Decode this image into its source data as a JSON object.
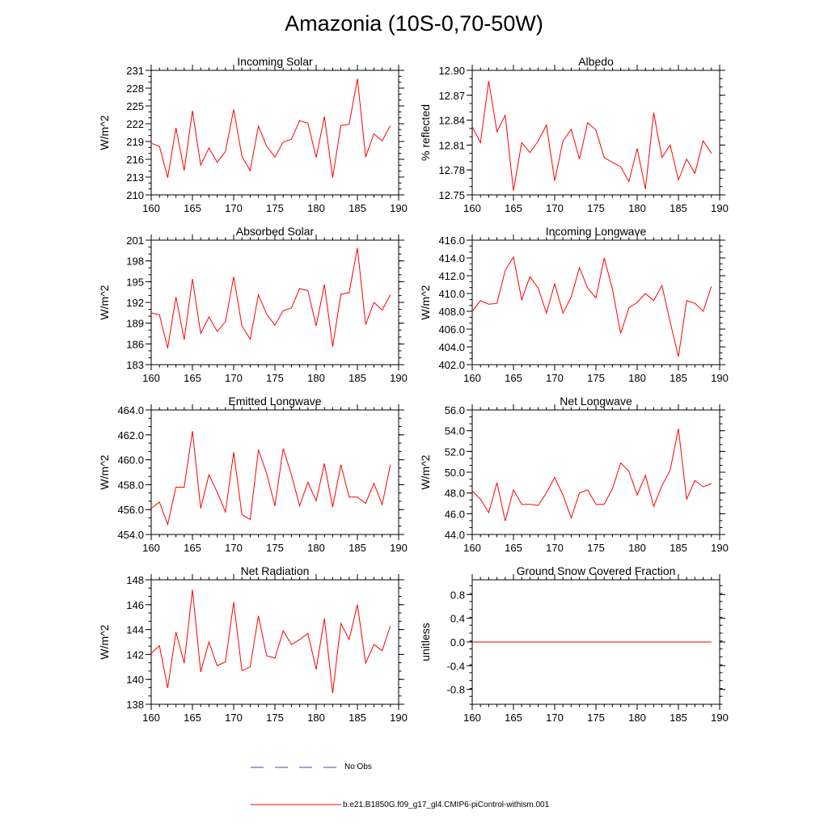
{
  "title": "Amazonia (10S-0,70-50W)",
  "legend": {
    "no_obs_label": "No Obs",
    "no_obs_color": "#3b4ba8",
    "model_label": "b.e21.B1850G.f09_g17_gl4.CMIP6-piControl-withism.001",
    "model_color": "#ff0000"
  },
  "chart_data": [
    {
      "type": "line",
      "title": "Incoming Solar",
      "ylabel": "W/m^2",
      "xlim": [
        160,
        190
      ],
      "ylim": [
        210,
        231
      ],
      "xticks": [
        160,
        165,
        170,
        175,
        180,
        185,
        190
      ],
      "yticks": [
        "210",
        "213",
        "216",
        "219",
        "222",
        "225",
        "228",
        "231"
      ],
      "x": [
        160,
        161,
        162,
        163,
        164,
        165,
        166,
        167,
        168,
        169,
        170,
        171,
        172,
        173,
        174,
        175,
        176,
        177,
        178,
        179,
        180,
        181,
        182,
        183,
        184,
        185,
        186,
        187,
        188,
        189
      ],
      "series": [
        {
          "values": [
            218.7,
            218.2,
            212.9,
            221.3,
            214.1,
            224.2,
            215.0,
            217.9,
            215.5,
            217.3,
            224.4,
            216.5,
            214.1,
            221.6,
            218.2,
            216.4,
            218.9,
            219.4,
            222.5,
            222.1,
            216.3,
            223.2,
            212.9,
            221.7,
            221.9,
            229.6,
            216.4,
            220.3,
            219.1,
            221.7
          ]
        }
      ]
    },
    {
      "type": "line",
      "title": "Albedo",
      "ylabel": "% reflected",
      "xlim": [
        160,
        190
      ],
      "ylim": [
        12.75,
        12.9
      ],
      "xticks": [
        160,
        165,
        170,
        175,
        180,
        185,
        190
      ],
      "yticks": [
        "12.75",
        "12.78",
        "12.81",
        "12.84",
        "12.87",
        "12.90"
      ],
      "x": [
        160,
        161,
        162,
        163,
        164,
        165,
        166,
        167,
        168,
        169,
        170,
        171,
        172,
        173,
        174,
        175,
        176,
        177,
        178,
        179,
        180,
        181,
        182,
        183,
        184,
        185,
        186,
        187,
        188,
        189
      ],
      "series": [
        {
          "values": [
            12.832,
            12.813,
            12.887,
            12.826,
            12.846,
            12.755,
            12.813,
            12.801,
            12.815,
            12.834,
            12.767,
            12.815,
            12.829,
            12.793,
            12.837,
            12.828,
            12.795,
            12.789,
            12.784,
            12.766,
            12.806,
            12.757,
            12.849,
            12.795,
            12.81,
            12.768,
            12.793,
            12.776,
            12.815,
            12.8
          ]
        }
      ]
    },
    {
      "type": "line",
      "title": "Absorbed Solar",
      "ylabel": "W/m^2",
      "xlim": [
        160,
        190
      ],
      "ylim": [
        183,
        201
      ],
      "xticks": [
        160,
        165,
        170,
        175,
        180,
        185,
        190
      ],
      "yticks": [
        "183",
        "186",
        "189",
        "192",
        "195",
        "198",
        "201"
      ],
      "x": [
        160,
        161,
        162,
        163,
        164,
        165,
        166,
        167,
        168,
        169,
        170,
        171,
        172,
        173,
        174,
        175,
        176,
        177,
        178,
        179,
        180,
        181,
        182,
        183,
        184,
        185,
        186,
        187,
        188,
        189
      ],
      "series": [
        {
          "values": [
            190.5,
            190.2,
            185.4,
            192.8,
            186.6,
            195.4,
            187.5,
            189.9,
            187.8,
            189.2,
            195.7,
            188.6,
            186.7,
            193.1,
            190.3,
            188.7,
            190.8,
            191.2,
            194.0,
            193.7,
            188.6,
            194.6,
            185.6,
            193.2,
            193.4,
            199.9,
            188.8,
            192.0,
            190.9,
            193.1
          ]
        }
      ]
    },
    {
      "type": "line",
      "title": "Incoming Longwave",
      "ylabel": "W/m^2",
      "xlim": [
        160,
        190
      ],
      "ylim": [
        402.0,
        416.0
      ],
      "xticks": [
        160,
        165,
        170,
        175,
        180,
        185,
        190
      ],
      "yticks": [
        "402.0",
        "404.0",
        "406.0",
        "408.0",
        "410.0",
        "412.0",
        "414.0",
        "416.0"
      ],
      "x": [
        160,
        161,
        162,
        163,
        164,
        165,
        166,
        167,
        168,
        169,
        170,
        171,
        172,
        173,
        174,
        175,
        176,
        177,
        178,
        179,
        180,
        181,
        182,
        183,
        184,
        185,
        186,
        187,
        188,
        189
      ],
      "series": [
        {
          "values": [
            408.0,
            409.2,
            408.8,
            408.9,
            412.6,
            414.1,
            409.3,
            411.9,
            410.6,
            407.8,
            411.1,
            407.8,
            409.6,
            412.9,
            410.6,
            409.5,
            414.0,
            410.5,
            405.5,
            408.4,
            409.0,
            410.0,
            409.2,
            410.9,
            406.8,
            402.9,
            409.2,
            408.9,
            408.0,
            410.8
          ]
        }
      ]
    },
    {
      "type": "line",
      "title": "Emitted Longwave",
      "ylabel": "W/m^2",
      "xlim": [
        160,
        190
      ],
      "ylim": [
        454.0,
        464.0
      ],
      "xticks": [
        160,
        165,
        170,
        175,
        180,
        185,
        190
      ],
      "yticks": [
        "454.0",
        "456.0",
        "458.0",
        "460.0",
        "462.0",
        "464.0"
      ],
      "x": [
        160,
        161,
        162,
        163,
        164,
        165,
        166,
        167,
        168,
        169,
        170,
        171,
        172,
        173,
        174,
        175,
        176,
        177,
        178,
        179,
        180,
        181,
        182,
        183,
        184,
        185,
        186,
        187,
        188,
        189
      ],
      "series": [
        {
          "values": [
            456.1,
            456.6,
            454.8,
            457.8,
            457.8,
            462.3,
            456.1,
            458.8,
            457.4,
            455.8,
            460.6,
            455.6,
            455.2,
            460.8,
            458.9,
            456.3,
            460.9,
            458.8,
            456.3,
            458.2,
            456.7,
            459.7,
            456.2,
            459.6,
            457.0,
            457.0,
            456.5,
            458.1,
            456.4,
            459.6
          ]
        }
      ]
    },
    {
      "type": "line",
      "title": "Net Longwave",
      "ylabel": "W/m^2",
      "xlim": [
        160,
        190
      ],
      "ylim": [
        44.0,
        56.0
      ],
      "xticks": [
        160,
        165,
        170,
        175,
        180,
        185,
        190
      ],
      "yticks": [
        "44.0",
        "46.0",
        "48.0",
        "50.0",
        "52.0",
        "54.0",
        "56.0"
      ],
      "x": [
        160,
        161,
        162,
        163,
        164,
        165,
        166,
        167,
        168,
        169,
        170,
        171,
        172,
        173,
        174,
        175,
        176,
        177,
        178,
        179,
        180,
        181,
        182,
        183,
        184,
        185,
        186,
        187,
        188,
        189
      ],
      "series": [
        {
          "values": [
            48.2,
            47.4,
            46.1,
            49.0,
            45.3,
            48.3,
            46.9,
            46.9,
            46.8,
            48.0,
            49.5,
            47.8,
            45.6,
            48.0,
            48.3,
            46.9,
            46.9,
            48.4,
            50.9,
            50.1,
            47.8,
            49.7,
            46.7,
            48.7,
            50.2,
            54.2,
            47.4,
            49.2,
            48.6,
            48.9
          ]
        }
      ]
    },
    {
      "type": "line",
      "title": "Net Radiation",
      "ylabel": "W/m^2",
      "xlim": [
        160,
        190
      ],
      "ylim": [
        138,
        148
      ],
      "xticks": [
        160,
        165,
        170,
        175,
        180,
        185,
        190
      ],
      "yticks": [
        "138",
        "140",
        "142",
        "144",
        "146",
        "148"
      ],
      "x": [
        160,
        161,
        162,
        163,
        164,
        165,
        166,
        167,
        168,
        169,
        170,
        171,
        172,
        173,
        174,
        175,
        176,
        177,
        178,
        179,
        180,
        181,
        182,
        183,
        184,
        185,
        186,
        187,
        188,
        189
      ],
      "series": [
        {
          "values": [
            142.1,
            142.7,
            139.3,
            143.8,
            141.3,
            147.2,
            140.6,
            143.0,
            141.1,
            141.4,
            146.2,
            140.7,
            141.0,
            145.1,
            141.9,
            141.7,
            143.9,
            142.8,
            143.2,
            143.7,
            140.8,
            144.9,
            138.9,
            144.5,
            143.2,
            146.0,
            141.3,
            142.8,
            142.3,
            144.3
          ]
        }
      ]
    },
    {
      "type": "line",
      "title": "Ground Snow Covered Fraction",
      "ylabel": "unitless",
      "xlim": [
        160,
        190
      ],
      "ylim": [
        -1.05,
        1.05
      ],
      "xticks": [
        160,
        165,
        170,
        175,
        180,
        185,
        190
      ],
      "yticks": [
        "-0.8",
        "-0.4",
        "0.0",
        "0.4",
        "0.8"
      ],
      "x": [
        160,
        161,
        162,
        163,
        164,
        165,
        166,
        167,
        168,
        169,
        170,
        171,
        172,
        173,
        174,
        175,
        176,
        177,
        178,
        179,
        180,
        181,
        182,
        183,
        184,
        185,
        186,
        187,
        188,
        189
      ],
      "series": [
        {
          "values": [
            0,
            0,
            0,
            0,
            0,
            0,
            0,
            0,
            0,
            0,
            0,
            0,
            0,
            0,
            0,
            0,
            0,
            0,
            0,
            0,
            0,
            0,
            0,
            0,
            0,
            0,
            0,
            0,
            0,
            0
          ]
        }
      ]
    }
  ]
}
